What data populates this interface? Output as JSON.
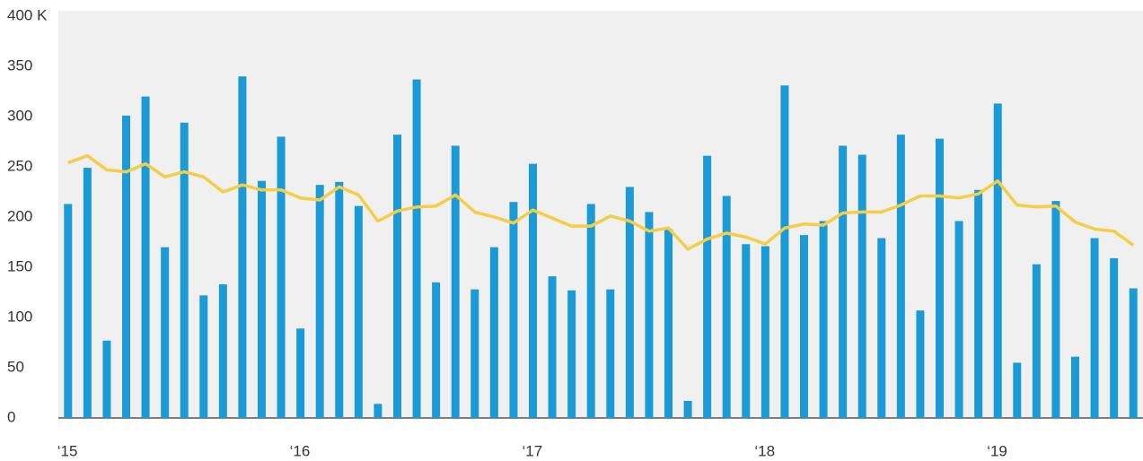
{
  "chart_data": {
    "type": "bar_line",
    "categories": [
      "‘15",
      null,
      null,
      null,
      null,
      null,
      null,
      null,
      null,
      null,
      null,
      null,
      "‘16",
      null,
      null,
      null,
      null,
      null,
      null,
      null,
      null,
      null,
      null,
      null,
      "‘17",
      null,
      null,
      null,
      null,
      null,
      null,
      null,
      null,
      null,
      null,
      null,
      "‘18",
      null,
      null,
      null,
      null,
      null,
      null,
      null,
      null,
      null,
      null,
      null,
      "‘19",
      null,
      null,
      null,
      null,
      null,
      null,
      null
    ],
    "series": [
      {
        "type": "bar",
        "color": "#1a9bd7",
        "values": [
          213,
          249,
          77,
          301,
          320,
          170,
          294,
          122,
          133,
          340,
          236,
          280,
          89,
          232,
          235,
          211,
          14,
          282,
          337,
          135,
          271,
          128,
          170,
          215,
          253,
          141,
          127,
          213,
          128,
          230,
          205,
          188,
          17,
          261,
          221,
          173,
          171,
          331,
          182,
          196,
          271,
          262,
          179,
          282,
          107,
          278,
          196,
          227,
          313,
          55,
          153,
          216,
          61,
          179,
          159,
          129
        ]
      },
      {
        "type": "line",
        "color": "#f5cd47",
        "values": [
          254,
          261,
          247,
          245,
          253,
          240,
          245,
          240,
          225,
          232,
          227,
          227,
          219,
          217,
          230,
          222,
          196,
          206,
          210,
          211,
          222,
          205,
          200,
          194,
          207,
          199,
          191,
          191,
          201,
          196,
          186,
          189,
          168,
          178,
          184,
          180,
          173,
          189,
          193,
          192,
          204,
          205,
          205,
          212,
          221,
          221,
          219,
          223,
          236,
          212,
          210,
          211,
          195,
          188,
          186,
          172
        ]
      }
    ],
    "ylim": [
      0,
      400
    ],
    "yticks": [
      0,
      50,
      100,
      150,
      200,
      250,
      300,
      350,
      {
        "value": 400,
        "label": "400 K"
      }
    ],
    "grid": false
  }
}
